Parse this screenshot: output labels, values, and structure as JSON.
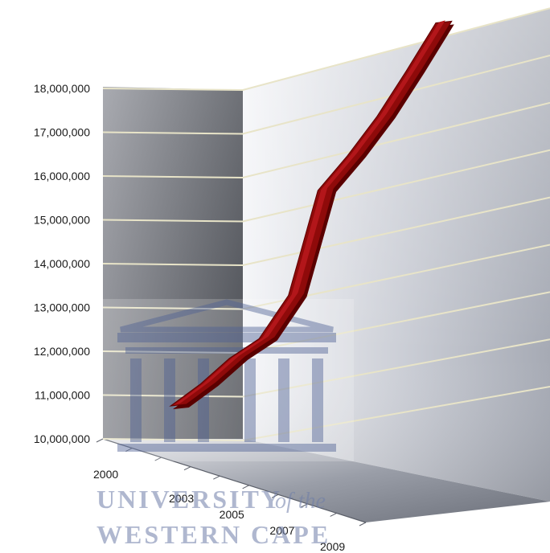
{
  "chart_data": {
    "type": "line",
    "style": "3d",
    "title": "",
    "xlabel": "",
    "ylabel": "",
    "x": [
      2000,
      2001,
      2002,
      2003,
      2004,
      2005,
      2006,
      2007,
      2008,
      2009
    ],
    "x_tick_labels": [
      "2000",
      "2003",
      "2005",
      "2007",
      "2009"
    ],
    "series": [
      {
        "values": [
          10750000,
          11250000,
          11850000,
          12300000,
          13300000,
          15700000,
          16500000,
          17400000,
          18450000,
          19550000
        ]
      }
    ],
    "y_ticks": [
      10000000,
      11000000,
      12000000,
      13000000,
      14000000,
      15000000,
      16000000,
      17000000,
      18000000
    ],
    "y_tick_labels": [
      "10,000,000",
      "11,000,000",
      "12,000,000",
      "13,000,000",
      "14,000,000",
      "15,000,000",
      "16,000,000",
      "17,000,000",
      "18,000,000"
    ],
    "ylim": [
      10000000,
      18000000
    ],
    "grid": true,
    "legend": "none",
    "line_color": "#8b0000",
    "gridline_color": "#e8e4c8"
  },
  "watermark": {
    "line1_a": "UNIVERSITY",
    "line1_b": "of the",
    "line2": "WESTERN CAPE",
    "color": "#6f7ea8"
  }
}
